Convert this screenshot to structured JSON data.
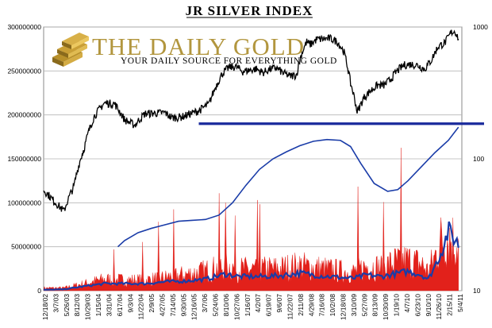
{
  "logo": {
    "main": "THE DAILY GOLD",
    "sub": "YOUR DAILY SOURCE FOR EVERYTHING GOLD"
  },
  "chart_data": {
    "type": "line",
    "title": "JR SILVER INDEX",
    "left_axis": {
      "ticks": [
        "0",
        "50000000",
        "100000000",
        "150000000",
        "200000000",
        "250000000",
        "300000000"
      ],
      "range": [
        0,
        300000000
      ]
    },
    "right_axis": {
      "scale": "log",
      "ticks": [
        "10",
        "100",
        "1000"
      ],
      "range": [
        10,
        1000
      ]
    },
    "x_ticks": [
      "12/18/02",
      "3/7/03",
      "5/26/03",
      "8/12/03",
      "10/29/03",
      "1/15/04",
      "3/31/04",
      "6/17/04",
      "9/3/04",
      "11/22/04",
      "2/9/05",
      "4/27/05",
      "7/14/05",
      "9/30/05",
      "12/16/05",
      "3/7/06",
      "5/24/06",
      "8/10/06",
      "10/27/06",
      "1/16/07",
      "4/2/07",
      "6/19/07",
      "9/6/07",
      "11/22/07",
      "2/11/08",
      "4/29/08",
      "7/16/08",
      "10/2/08",
      "12/18/08",
      "3/10/09",
      "5/27/09",
      "8/13/09",
      "10/30/09",
      "1/19/10",
      "4/7/10",
      "6/23/10",
      "9/10/10",
      "11/26/10",
      "2/15/11",
      "5/4/11"
    ],
    "grid": true,
    "resistance_level": 190000000,
    "series": [
      {
        "kind": "price",
        "color": "#000000",
        "points": [
          [
            0,
            58
          ],
          [
            1.5,
            48
          ],
          [
            3,
            40
          ],
          [
            4.5,
            62
          ],
          [
            6,
            120
          ],
          [
            7.5,
            210
          ],
          [
            9,
            265
          ],
          [
            10.5,
            262
          ],
          [
            12,
            198
          ],
          [
            13.5,
            180
          ],
          [
            15,
            220
          ],
          [
            16.5,
            222
          ],
          [
            18,
            224
          ],
          [
            19,
            205
          ],
          [
            20.5,
            208
          ],
          [
            22,
            222
          ],
          [
            23,
            232
          ],
          [
            24.5,
            260
          ],
          [
            25.5,
            350
          ],
          [
            26.5,
            445
          ],
          [
            27.5,
            495
          ],
          [
            28.5,
            500
          ],
          [
            29.5,
            460
          ],
          [
            30.5,
            470
          ],
          [
            31.5,
            482
          ],
          [
            32.5,
            450
          ],
          [
            33.5,
            478
          ],
          [
            34.5,
            490
          ],
          [
            35.5,
            448
          ],
          [
            36.5,
            425
          ],
          [
            37.5,
            432
          ],
          [
            38.2,
            618
          ],
          [
            39,
            772
          ],
          [
            39.5,
            735
          ],
          [
            40.5,
            808
          ],
          [
            41.5,
            812
          ],
          [
            42.5,
            818
          ],
          [
            43.5,
            778
          ],
          [
            44.5,
            652
          ],
          [
            45.5,
            375
          ],
          [
            46.5,
            225
          ],
          [
            47.5,
            292
          ],
          [
            48.5,
            330
          ],
          [
            49.5,
            362
          ],
          [
            50.5,
            362
          ],
          [
            51.5,
            405
          ],
          [
            52.5,
            472
          ],
          [
            53.5,
            515
          ],
          [
            54.5,
            522
          ],
          [
            55.5,
            512
          ],
          [
            56.5,
            478
          ],
          [
            57.5,
            562
          ],
          [
            58.5,
            712
          ],
          [
            59.5,
            760
          ],
          [
            60.5,
            915
          ],
          [
            61,
            930
          ],
          [
            61.5,
            815
          ]
        ]
      },
      {
        "kind": "moving_average",
        "color": "#1a3ca8",
        "points": [
          [
            11,
            50000000
          ],
          [
            12,
            57000000
          ],
          [
            14,
            66000000
          ],
          [
            16,
            71000000
          ],
          [
            18,
            75000000
          ],
          [
            20,
            79000000
          ],
          [
            22,
            80000000
          ],
          [
            24,
            81000000
          ],
          [
            26,
            86000000
          ],
          [
            28,
            100000000
          ],
          [
            30,
            120000000
          ],
          [
            32,
            138000000
          ],
          [
            34,
            150000000
          ],
          [
            36,
            158000000
          ],
          [
            38,
            165000000
          ],
          [
            40,
            170000000
          ],
          [
            42,
            172000000
          ],
          [
            44,
            171000000
          ],
          [
            45.5,
            164000000
          ],
          [
            47,
            145000000
          ],
          [
            49,
            122000000
          ],
          [
            51,
            113000000
          ],
          [
            52.5,
            115000000
          ],
          [
            54,
            125000000
          ],
          [
            56,
            141000000
          ],
          [
            58,
            157000000
          ],
          [
            60,
            171000000
          ],
          [
            61.5,
            186000000
          ]
        ]
      },
      {
        "kind": "volume",
        "color": "#e2211b",
        "points": [
          [
            0,
            3000000
          ],
          [
            3,
            3000000
          ],
          [
            6,
            8000000
          ],
          [
            9,
            13000000
          ],
          [
            12,
            12000000
          ],
          [
            15,
            12000000
          ],
          [
            18,
            15000000
          ],
          [
            21,
            18000000
          ],
          [
            24,
            22000000
          ],
          [
            27,
            28000000
          ],
          [
            29,
            24000000
          ],
          [
            32,
            24000000
          ],
          [
            35,
            25000000
          ],
          [
            38,
            28000000
          ],
          [
            41,
            25000000
          ],
          [
            44,
            22000000
          ],
          [
            46,
            21000000
          ],
          [
            48,
            28000000
          ],
          [
            50,
            26000000
          ],
          [
            52,
            32000000
          ],
          [
            54,
            34000000
          ],
          [
            56,
            30000000
          ],
          [
            57,
            22000000
          ],
          [
            58,
            38000000
          ],
          [
            59,
            58000000
          ],
          [
            60,
            62000000
          ],
          [
            61.5,
            52000000
          ]
        ]
      },
      {
        "kind": "volume_average",
        "color": "#1a3ca8",
        "points": [
          [
            0,
            1000000
          ],
          [
            3,
            1500000
          ],
          [
            6,
            5000000
          ],
          [
            9,
            8000000
          ],
          [
            12,
            8000000
          ],
          [
            15,
            8000000
          ],
          [
            18,
            10000000
          ],
          [
            21,
            11000000
          ],
          [
            24,
            13000000
          ],
          [
            27,
            19000000
          ],
          [
            29,
            16000000
          ],
          [
            32,
            16000000
          ],
          [
            35,
            17000000
          ],
          [
            38,
            20000000
          ],
          [
            41,
            17000000
          ],
          [
            44,
            15000000
          ],
          [
            46,
            14000000
          ],
          [
            48,
            18000000
          ],
          [
            50,
            16000000
          ],
          [
            52,
            19000000
          ],
          [
            54,
            22000000
          ],
          [
            56,
            18000000
          ],
          [
            57,
            13000000
          ],
          [
            58,
            28000000
          ],
          [
            59,
            45000000
          ],
          [
            60,
            68000000
          ],
          [
            61.5,
            53000000
          ]
        ]
      }
    ]
  }
}
